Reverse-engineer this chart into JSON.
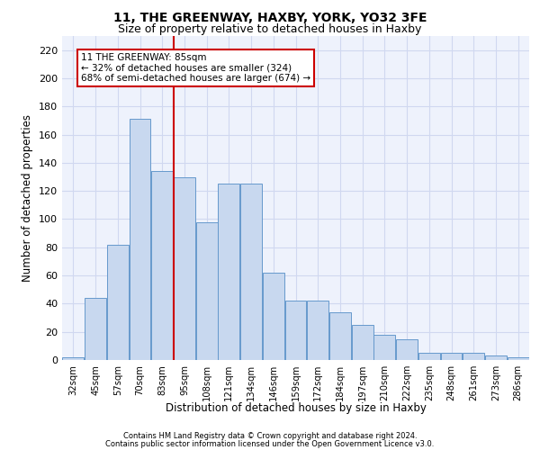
{
  "title1": "11, THE GREENWAY, HAXBY, YORK, YO32 3FE",
  "title2": "Size of property relative to detached houses in Haxby",
  "xlabel": "Distribution of detached houses by size in Haxby",
  "ylabel": "Number of detached properties",
  "categories": [
    "32sqm",
    "45sqm",
    "57sqm",
    "70sqm",
    "83sqm",
    "95sqm",
    "108sqm",
    "121sqm",
    "134sqm",
    "146sqm",
    "159sqm",
    "172sqm",
    "184sqm",
    "197sqm",
    "210sqm",
    "222sqm",
    "235sqm",
    "248sqm",
    "261sqm",
    "273sqm",
    "286sqm"
  ],
  "values": [
    2,
    44,
    82,
    171,
    134,
    130,
    98,
    125,
    125,
    62,
    42,
    42,
    34,
    25,
    18,
    15,
    5,
    5,
    5,
    3,
    2
  ],
  "bar_color": "#c8d8ef",
  "bar_edge_color": "#6699cc",
  "annotation_text1": "11 THE GREENWAY: 85sqm",
  "annotation_text2": "← 32% of detached houses are smaller (324)",
  "annotation_text3": "68% of semi-detached houses are larger (674) →",
  "annotation_box_color": "#ffffff",
  "annotation_box_edge_color": "#cc0000",
  "vline_color": "#cc0000",
  "footnote1": "Contains HM Land Registry data © Crown copyright and database right 2024.",
  "footnote2": "Contains public sector information licensed under the Open Government Licence v3.0.",
  "ylim": [
    0,
    230
  ],
  "yticks": [
    0,
    20,
    40,
    60,
    80,
    100,
    120,
    140,
    160,
    180,
    200,
    220
  ],
  "background_color": "#eef2fc",
  "grid_color": "#d0d8f0",
  "title1_fontsize": 10,
  "title2_fontsize": 9
}
